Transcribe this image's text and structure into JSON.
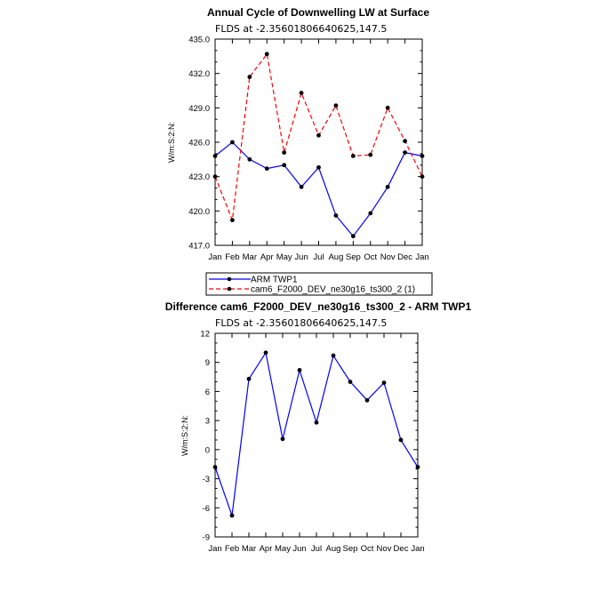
{
  "chart_data": [
    {
      "type": "line",
      "title": "Annual Cycle of Downwelling LW at Surface",
      "subtitle": "FLDS at -2.35601806640625,147.5",
      "ylabel": "W/m:S:2:N:",
      "categories": [
        "Jan",
        "Feb",
        "Mar",
        "Apr",
        "May",
        "Jun",
        "Jul",
        "Aug",
        "Sep",
        "Oct",
        "Nov",
        "Dec",
        "Jan"
      ],
      "ylim": [
        417.0,
        435.0
      ],
      "yticks": [
        "417.0",
        "420.0",
        "423.0",
        "426.0",
        "429.0",
        "432.0",
        "435.0"
      ],
      "series": [
        {
          "name": "ARM TWP1",
          "color": "#0000ff",
          "dash": "solid",
          "values": [
            424.8,
            426.0,
            424.5,
            423.7,
            424.0,
            422.1,
            423.8,
            419.6,
            417.8,
            419.8,
            422.1,
            425.1,
            424.8
          ]
        },
        {
          "name": "cam6_F2000_DEV_ne30g16_ts300_2 (1)",
          "color": "#ff0000",
          "dash": "dashed",
          "values": [
            423.0,
            419.2,
            431.7,
            433.7,
            425.1,
            430.3,
            426.6,
            429.2,
            424.8,
            424.9,
            429.0,
            426.1,
            423.0
          ]
        }
      ],
      "legend": "below"
    },
    {
      "type": "line",
      "title": "Difference cam6_F2000_DEV_ne30g16_ts300_2 - ARM TWP1",
      "subtitle": "FLDS at -2.35601806640625,147.5",
      "ylabel": "W/m:S:2:N:",
      "categories": [
        "Jan",
        "Feb",
        "Mar",
        "Apr",
        "May",
        "Jun",
        "Jul",
        "Aug",
        "Sep",
        "Oct",
        "Nov",
        "Dec",
        "Jan"
      ],
      "ylim": [
        -9,
        12
      ],
      "yticks": [
        "-9",
        "-6",
        "-3",
        "0",
        "3",
        "6",
        "9",
        "12"
      ],
      "series": [
        {
          "color": "#0000ff",
          "dash": "solid",
          "values": [
            -1.8,
            -6.8,
            7.3,
            10.0,
            1.1,
            8.2,
            2.8,
            9.7,
            7.0,
            5.1,
            6.9,
            1.0,
            -1.8
          ]
        }
      ]
    }
  ]
}
